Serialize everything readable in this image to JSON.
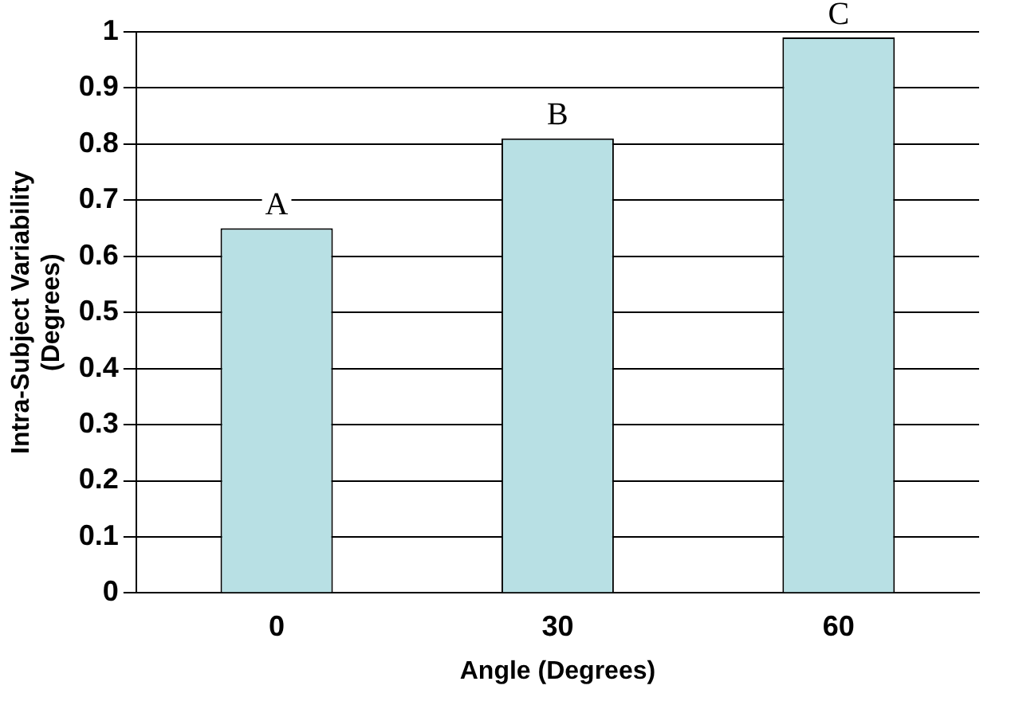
{
  "chart_data": {
    "type": "bar",
    "xlabel": "Angle (Degrees)",
    "ylabel": "Intra-Subject Variability (Degrees)",
    "categories": [
      "0",
      "30",
      "60"
    ],
    "values": [
      0.65,
      0.81,
      0.99
    ],
    "color": "#b8e0e4",
    "ylim": [
      0,
      1
    ],
    "yticks": [
      0,
      0.1,
      0.2,
      0.3,
      0.4,
      0.5,
      0.6,
      0.7,
      0.8,
      0.9,
      1
    ],
    "grid": "y",
    "annotations": [
      {
        "text": "A",
        "x": "0",
        "y": 0.65
      },
      {
        "text": "B",
        "x": "30",
        "y": 0.81
      },
      {
        "text": "C",
        "x": "60",
        "y": 0.99
      }
    ]
  }
}
